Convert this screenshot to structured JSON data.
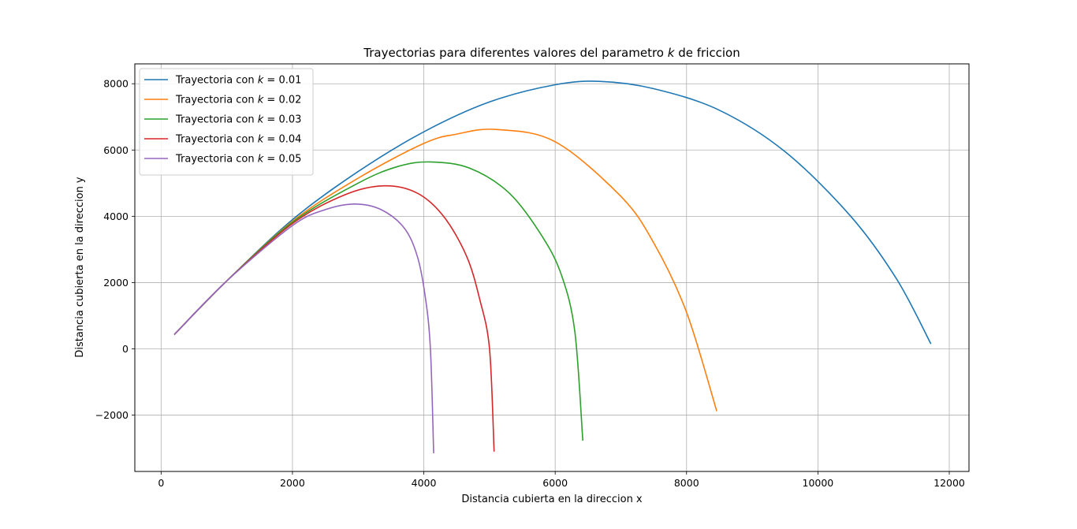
{
  "chart_data": {
    "type": "line",
    "title": "Trayectorias para diferentes valores del parametro",
    "title_var": "k",
    "title_suffix": "de friccion",
    "xlabel": "Distancia cubierta en la direccion x",
    "ylabel": "Distancia cubierta en la direccion y",
    "xlim": [
      -400,
      12300
    ],
    "ylim": [
      -3700,
      8600
    ],
    "x_ticks": [
      0,
      2000,
      4000,
      6000,
      8000,
      10000,
      12000
    ],
    "y_ticks": [
      -2000,
      0,
      2000,
      4000,
      6000,
      8000
    ],
    "x_tick_labels": [
      "0",
      "2000",
      "4000",
      "6000",
      "8000",
      "10000",
      "12000"
    ],
    "y_tick_labels": [
      "−2000",
      "0",
      "2000",
      "4000",
      "6000",
      "8000"
    ],
    "grid": true,
    "legend_position": "top-left",
    "series": [
      {
        "name": "Trayectoria con k = 0.01",
        "legend_prefix": "Trayectoria con",
        "legend_var": "k",
        "legend_value": "= 0.01",
        "color": "#1f77b4",
        "points": [
          [
            200,
            430
          ],
          [
            1000,
            2050
          ],
          [
            2000,
            3900
          ],
          [
            3000,
            5350
          ],
          [
            4000,
            6550
          ],
          [
            5000,
            7450
          ],
          [
            6000,
            7970
          ],
          [
            6700,
            8070
          ],
          [
            7500,
            7850
          ],
          [
            8500,
            7200
          ],
          [
            9500,
            5950
          ],
          [
            10500,
            4000
          ],
          [
            11200,
            2100
          ],
          [
            11720,
            150
          ]
        ]
      },
      {
        "name": "Trayectoria con k = 0.02",
        "legend_prefix": "Trayectoria con",
        "legend_var": "k",
        "legend_value": "= 0.02",
        "color": "#ff7f0e",
        "points": [
          [
            200,
            430
          ],
          [
            1000,
            2050
          ],
          [
            2000,
            3850
          ],
          [
            3000,
            5150
          ],
          [
            4000,
            6200
          ],
          [
            4500,
            6480
          ],
          [
            5100,
            6620
          ],
          [
            6000,
            6250
          ],
          [
            7000,
            4600
          ],
          [
            7500,
            3200
          ],
          [
            8000,
            1100
          ],
          [
            8460,
            -1880
          ]
        ]
      },
      {
        "name": "Trayectoria con k = 0.03",
        "legend_prefix": "Trayectoria con",
        "legend_var": "k",
        "legend_value": "= 0.03",
        "color": "#2ca02c",
        "points": [
          [
            200,
            430
          ],
          [
            1000,
            2050
          ],
          [
            2000,
            3820
          ],
          [
            3000,
            5000
          ],
          [
            3600,
            5500
          ],
          [
            4100,
            5640
          ],
          [
            4700,
            5450
          ],
          [
            5300,
            4700
          ],
          [
            5800,
            3400
          ],
          [
            6100,
            2200
          ],
          [
            6300,
            500
          ],
          [
            6420,
            -2770
          ]
        ]
      },
      {
        "name": "Trayectoria con k = 0.04",
        "legend_prefix": "Trayectoria con",
        "legend_var": "k",
        "legend_value": "= 0.04",
        "color": "#d62728",
        "points": [
          [
            200,
            430
          ],
          [
            1000,
            2050
          ],
          [
            2000,
            3780
          ],
          [
            2800,
            4650
          ],
          [
            3400,
            4920
          ],
          [
            3900,
            4700
          ],
          [
            4300,
            4000
          ],
          [
            4650,
            2800
          ],
          [
            4850,
            1500
          ],
          [
            5000,
            0
          ],
          [
            5070,
            -3100
          ]
        ]
      },
      {
        "name": "Trayectoria con k = 0.05",
        "legend_prefix": "Trayectoria con",
        "legend_var": "k",
        "legend_value": "= 0.05",
        "color": "#9467bd",
        "points": [
          [
            200,
            430
          ],
          [
            1000,
            2050
          ],
          [
            2000,
            3720
          ],
          [
            2500,
            4200
          ],
          [
            2950,
            4370
          ],
          [
            3350,
            4200
          ],
          [
            3700,
            3650
          ],
          [
            3900,
            2800
          ],
          [
            4020,
            1600
          ],
          [
            4100,
            0
          ],
          [
            4150,
            -3150
          ]
        ]
      }
    ]
  }
}
